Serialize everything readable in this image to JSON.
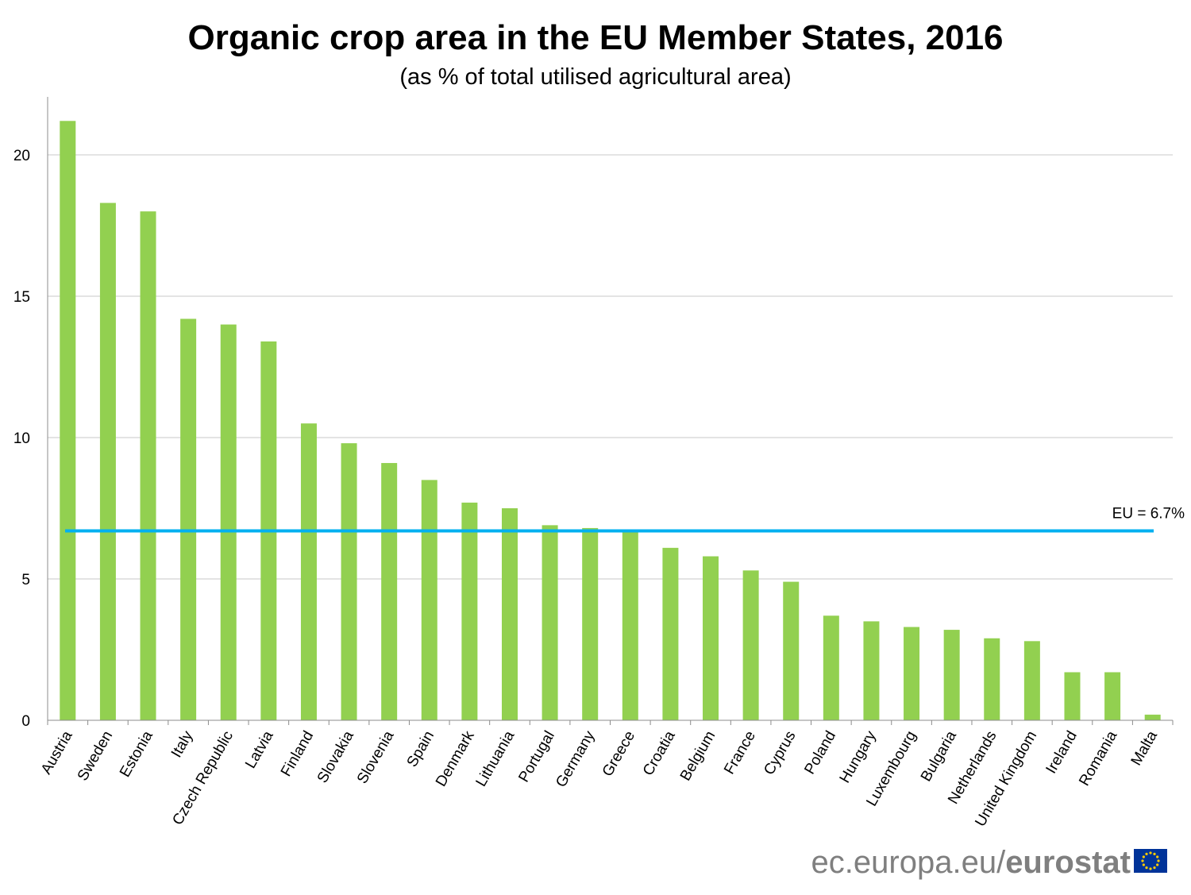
{
  "colors": {
    "bar": "#92d050",
    "reference_line": "#00b0f0",
    "grid": "#c8c8c8",
    "axis": "#8c8c8c",
    "brand_text": "#7f7f7f",
    "flag_blue": "#003399",
    "flag_stars": "#ffcc00"
  },
  "brand": {
    "domain": "ec.europa.eu/",
    "name": "eurostat",
    "icon": "eu-flag-icon"
  },
  "chart_data": {
    "type": "bar",
    "title": "Organic crop area in the EU Member States, 2016",
    "subtitle": "(as % of total utilised agricultural area)",
    "xlabel": "",
    "ylabel": "",
    "ylim": [
      0,
      22
    ],
    "yticks": [
      0,
      5,
      10,
      15,
      20
    ],
    "grid": true,
    "legend": "none",
    "categories": [
      "Austria",
      "Sweden",
      "Estonia",
      "Italy",
      "Czech Republic",
      "Latvia",
      "Finland",
      "Slovakia",
      "Slovenia",
      "Spain",
      "Denmark",
      "Lithuania",
      "Portugal",
      "Germany",
      "Greece",
      "Croatia",
      "Belgium",
      "France",
      "Cyprus",
      "Poland",
      "Hungary",
      "Luxembourg",
      "Bulgaria",
      "Netherlands",
      "United Kingdom",
      "Ireland",
      "Romania",
      "Malta"
    ],
    "values": [
      21.2,
      18.3,
      18.0,
      14.2,
      14.0,
      13.4,
      10.5,
      9.8,
      9.1,
      8.5,
      7.7,
      7.5,
      6.9,
      6.8,
      6.7,
      6.1,
      5.8,
      5.3,
      4.9,
      3.7,
      3.5,
      3.3,
      3.2,
      2.9,
      2.8,
      1.7,
      1.7,
      0.2
    ],
    "reference_line": {
      "value": 6.7,
      "label": "EU = 6.7%"
    }
  }
}
